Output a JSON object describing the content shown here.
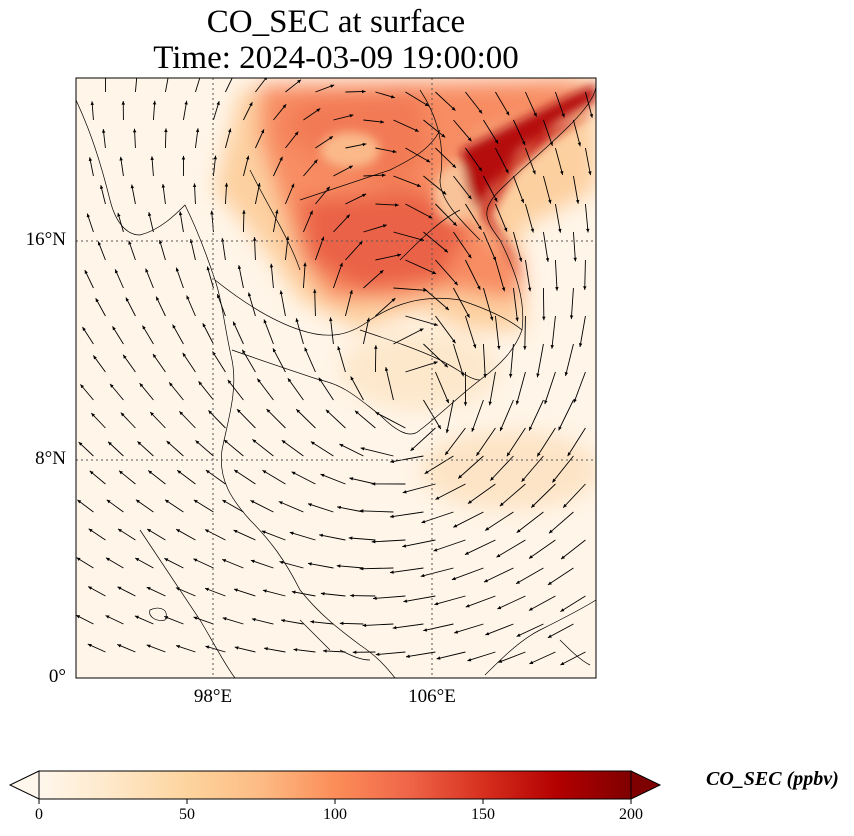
{
  "title": "CO_SEC at surface",
  "subtitle": "Time: 2024-03-09 19:00:00",
  "lat_ticks": [
    {
      "value": 16,
      "label": "16°N"
    },
    {
      "value": 8,
      "label": "8°N"
    },
    {
      "value": 0,
      "label": "0°"
    }
  ],
  "lon_ticks": [
    {
      "value": 98,
      "label": "98°E"
    },
    {
      "value": 106,
      "label": "106°E"
    }
  ],
  "extent": {
    "lon_min": 93,
    "lon_max": 112,
    "lat_min": 0,
    "lat_max": 22
  },
  "colorbar": {
    "label": "CO_SEC (ppbv)",
    "min": 0,
    "max": 200,
    "ticks": [
      "0",
      "50",
      "100",
      "150",
      "200"
    ],
    "colormap": "OrRd",
    "colors": [
      "#fff7ec",
      "#fee8c8",
      "#fdd49e",
      "#fdbb84",
      "#fc8d59",
      "#ef6548",
      "#d7301f",
      "#b30000",
      "#7f0000"
    ]
  },
  "gridlines": "dotted"
}
